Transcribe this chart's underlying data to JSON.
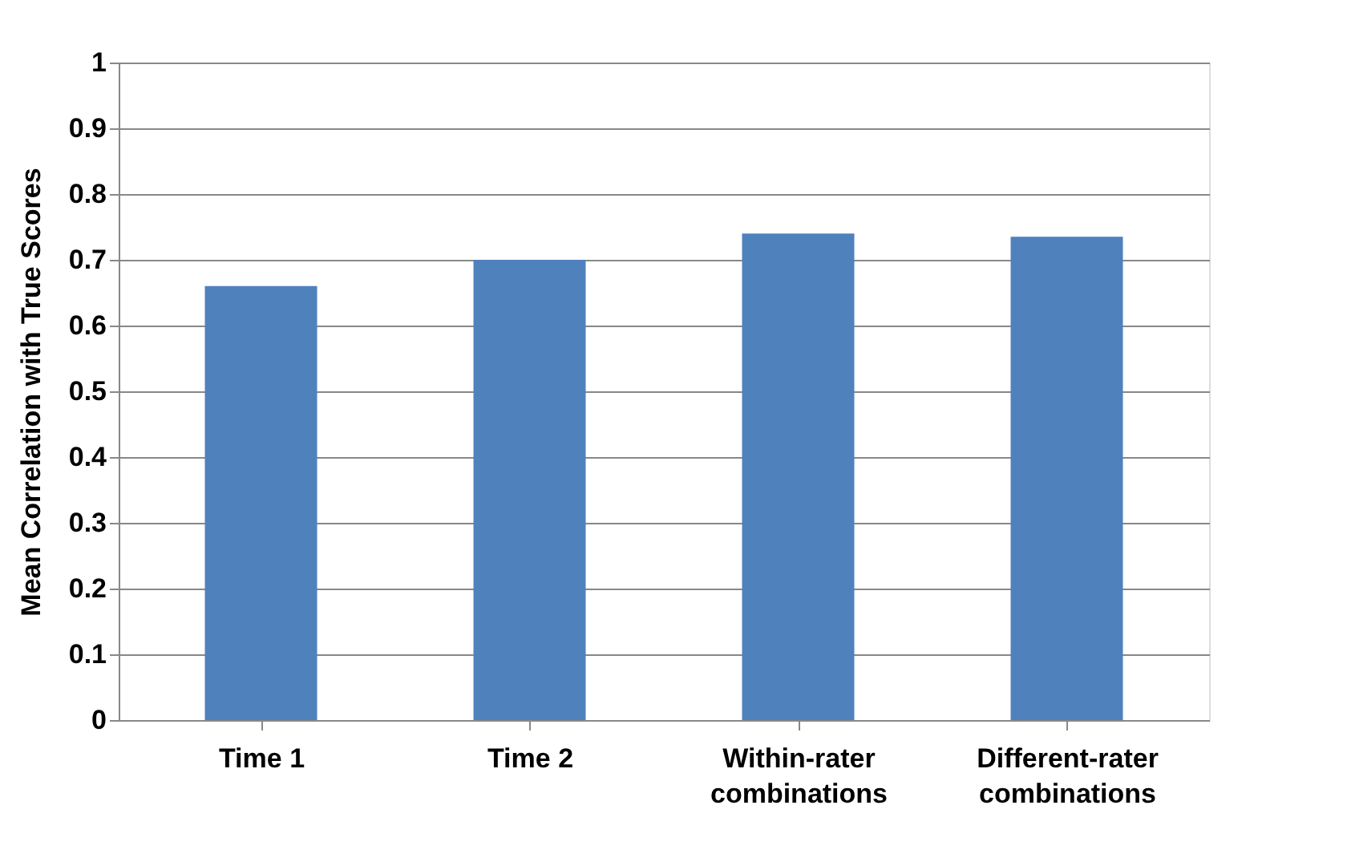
{
  "chart_data": {
    "type": "bar",
    "ylabel": "Mean Correlation with True Scores",
    "categories": [
      "Time 1",
      "Time 2",
      "Within-rater combinations",
      "Different-rater combinations"
    ],
    "values": [
      0.66,
      0.7,
      0.74,
      0.735
    ],
    "color": "#4f81bd",
    "ylim": [
      0,
      1
    ],
    "yticks": [
      0,
      0.1,
      0.2,
      0.3,
      0.4,
      0.5,
      0.6,
      0.7,
      0.8,
      0.9,
      1
    ],
    "grid": "y"
  }
}
